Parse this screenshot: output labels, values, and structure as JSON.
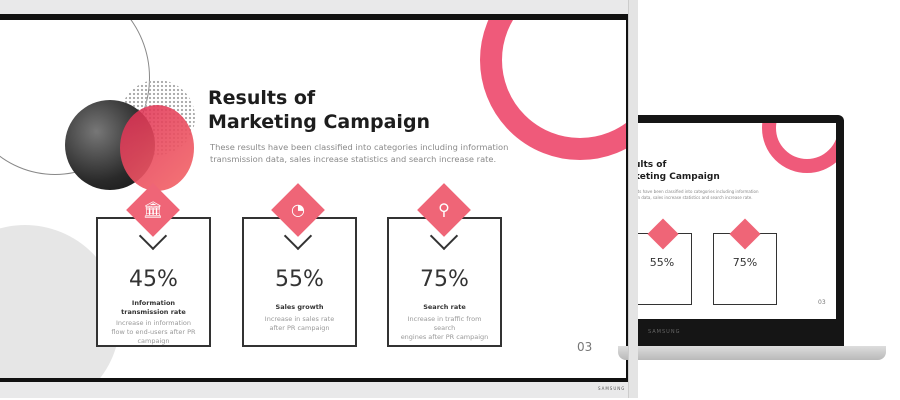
{
  "slide": {
    "title_line1": "Results of",
    "title_line2": "Marketing Campaign",
    "subtitle_line1": "These results have been classified into categories including information",
    "subtitle_line2": "transmission data, sales increase statistics and search increase rate.",
    "page_number": "03",
    "accent_color": "#ef6577",
    "cards": [
      {
        "icon": "bank-icon",
        "value": "45%",
        "label_line1": "Information",
        "label_line2": "transmission rate",
        "desc_line1": "Increase in information",
        "desc_line2": "flow to end-users after PR",
        "desc_line3": "campaign"
      },
      {
        "icon": "pie-chart-icon",
        "value": "55%",
        "label_line1": "Sales growth",
        "label_line2": "",
        "desc_line1": "Increase in sales rate",
        "desc_line2": "after PR campaign",
        "desc_line3": ""
      },
      {
        "icon": "search-icon",
        "value": "75%",
        "label_line1": "Search rate",
        "label_line2": "",
        "desc_line1": "Increase in traffic from search",
        "desc_line2": "engines after PR campaign",
        "desc_line3": ""
      }
    ]
  },
  "laptop": {
    "title_line1": "ults of",
    "title_line2": "keting Campaign",
    "subtitle_line1": "ults have been classified into categories including information",
    "subtitle_line2": "ion data, sales increase statistics and search increase rate.",
    "page_number": "03",
    "cards": [
      {
        "value": "55%"
      },
      {
        "value": "75%"
      }
    ]
  },
  "brand": "SAMSUNG"
}
